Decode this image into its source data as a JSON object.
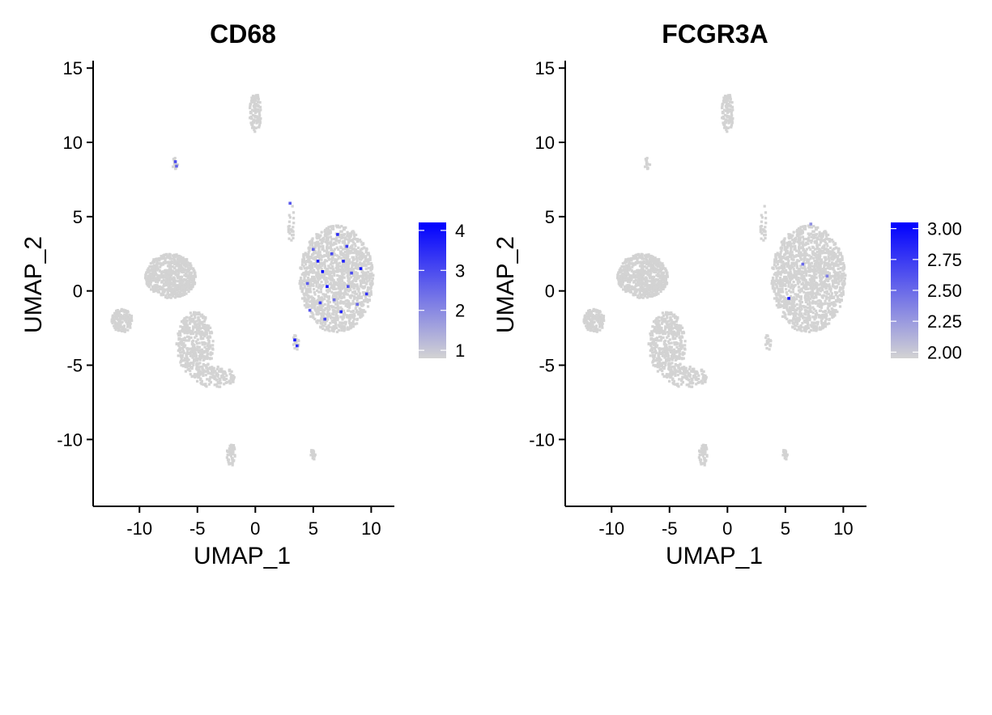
{
  "colors": {
    "low": "#d3d3d3",
    "high": "#0000ff",
    "axis": "#000000"
  },
  "chart_data": [
    {
      "type": "scatter",
      "title": "CD68",
      "xlabel": "UMAP_1",
      "ylabel": "UMAP_2",
      "xlim": [
        -14,
        12
      ],
      "ylim": [
        -14.5,
        15.5
      ],
      "xticks": [
        -10,
        -5,
        0,
        5,
        10
      ],
      "xtick_labels": [
        "-10",
        "-5",
        "0",
        "5",
        "10"
      ],
      "yticks": [
        -10,
        -5,
        0,
        5,
        10,
        15
      ],
      "ytick_labels": [
        "-10",
        "-5",
        "0",
        "5",
        "10",
        "15"
      ],
      "grid": false,
      "legend": {
        "placement": "right",
        "type": "colorbar",
        "range": [
          0.8,
          4.2
        ],
        "ticks": [
          1,
          2,
          3,
          4
        ],
        "tick_labels": [
          "1",
          "2",
          "3",
          "4"
        ],
        "low_color": "#d3d3d3",
        "high_color": "#0000ff"
      },
      "clusters": [
        {
          "cx": 7.0,
          "cy": 0.8,
          "rx": 3.2,
          "ry": 3.6,
          "n": 1500
        },
        {
          "cx": -7.3,
          "cy": 1.0,
          "rx": 2.2,
          "ry": 1.5,
          "n": 650
        },
        {
          "cx": -11.5,
          "cy": -2.0,
          "rx": 0.9,
          "ry": 0.8,
          "n": 140
        },
        {
          "cx": -5.2,
          "cy": -3.6,
          "rx": 1.6,
          "ry": 2.2,
          "n": 450
        },
        {
          "cx": -3.5,
          "cy": -5.8,
          "rx": 1.8,
          "ry": 0.7,
          "n": 130
        },
        {
          "cx": 0.0,
          "cy": 12.0,
          "rx": 0.5,
          "ry": 1.3,
          "n": 110
        },
        {
          "cx": -2.1,
          "cy": -11.0,
          "rx": 0.35,
          "ry": 0.8,
          "n": 45
        },
        {
          "cx": 5.0,
          "cy": -11.0,
          "rx": 0.25,
          "ry": 0.35,
          "n": 20
        },
        {
          "cx": 3.1,
          "cy": 4.5,
          "rx": 0.25,
          "ry": 1.5,
          "n": 25
        },
        {
          "cx": 3.5,
          "cy": -3.5,
          "rx": 0.25,
          "ry": 0.6,
          "n": 18
        },
        {
          "cx": -6.9,
          "cy": 8.6,
          "rx": 0.25,
          "ry": 0.45,
          "n": 14
        }
      ],
      "highlights": [
        {
          "x": 7.1,
          "y": 3.8,
          "v": 3.5
        },
        {
          "x": 5.4,
          "y": 2.0,
          "v": 3.8
        },
        {
          "x": 8.3,
          "y": 1.2,
          "v": 3.0
        },
        {
          "x": 6.2,
          "y": 0.3,
          "v": 4.0
        },
        {
          "x": 5.6,
          "y": -0.8,
          "v": 3.2
        },
        {
          "x": 7.4,
          "y": -1.4,
          "v": 3.6
        },
        {
          "x": 4.7,
          "y": -1.3,
          "v": 2.8
        },
        {
          "x": 9.1,
          "y": 1.5,
          "v": 3.9
        },
        {
          "x": 6.6,
          "y": 2.5,
          "v": 3.0
        },
        {
          "x": 8.8,
          "y": -0.9,
          "v": 2.5
        },
        {
          "x": 3.4,
          "y": -3.3,
          "v": 3.8
        },
        {
          "x": 3.6,
          "y": -3.7,
          "v": 3.5
        },
        {
          "x": -6.9,
          "y": 8.7,
          "v": 3.0
        },
        {
          "x": -6.8,
          "y": 8.4,
          "v": 2.6
        },
        {
          "x": 3.0,
          "y": 5.9,
          "v": 2.8
        },
        {
          "x": 5.0,
          "y": 2.8,
          "v": 2.6
        },
        {
          "x": 7.9,
          "y": 3.0,
          "v": 3.3
        },
        {
          "x": 6.0,
          "y": -1.9,
          "v": 3.1
        },
        {
          "x": 8.0,
          "y": 0.3,
          "v": 2.9
        },
        {
          "x": 5.8,
          "y": 1.3,
          "v": 4.1
        },
        {
          "x": 7.6,
          "y": 2.0,
          "v": 3.7
        },
        {
          "x": 4.5,
          "y": 0.5,
          "v": 2.7
        },
        {
          "x": 9.6,
          "y": -0.2,
          "v": 3.4
        },
        {
          "x": 6.8,
          "y": -0.6,
          "v": 2.4
        }
      ]
    },
    {
      "type": "scatter",
      "title": "FCGR3A",
      "xlabel": "UMAP_1",
      "ylabel": "UMAP_2",
      "xlim": [
        -14,
        12
      ],
      "ylim": [
        -14.5,
        15.5
      ],
      "xticks": [
        -10,
        -5,
        0,
        5,
        10
      ],
      "xtick_labels": [
        "-10",
        "-5",
        "0",
        "5",
        "10"
      ],
      "yticks": [
        -10,
        -5,
        0,
        5,
        10,
        15
      ],
      "ytick_labels": [
        "-10",
        "-5",
        "0",
        "5",
        "10",
        "15"
      ],
      "grid": false,
      "legend": {
        "placement": "right",
        "type": "colorbar",
        "range": [
          1.95,
          3.05
        ],
        "ticks": [
          2.0,
          2.25,
          2.5,
          2.75,
          3.0
        ],
        "tick_labels": [
          "2.00",
          "2.25",
          "2.50",
          "2.75",
          "3.00"
        ],
        "low_color": "#d3d3d3",
        "high_color": "#0000ff"
      },
      "clusters": [
        {
          "cx": 7.0,
          "cy": 0.8,
          "rx": 3.2,
          "ry": 3.6,
          "n": 1500
        },
        {
          "cx": -7.3,
          "cy": 1.0,
          "rx": 2.2,
          "ry": 1.5,
          "n": 650
        },
        {
          "cx": -11.5,
          "cy": -2.0,
          "rx": 0.9,
          "ry": 0.8,
          "n": 140
        },
        {
          "cx": -5.2,
          "cy": -3.6,
          "rx": 1.6,
          "ry": 2.2,
          "n": 450
        },
        {
          "cx": -3.5,
          "cy": -5.8,
          "rx": 1.8,
          "ry": 0.7,
          "n": 130
        },
        {
          "cx": 0.0,
          "cy": 12.0,
          "rx": 0.5,
          "ry": 1.3,
          "n": 110
        },
        {
          "cx": -2.1,
          "cy": -11.0,
          "rx": 0.35,
          "ry": 0.8,
          "n": 45
        },
        {
          "cx": 5.0,
          "cy": -11.0,
          "rx": 0.25,
          "ry": 0.35,
          "n": 20
        },
        {
          "cx": 3.1,
          "cy": 4.5,
          "rx": 0.25,
          "ry": 1.5,
          "n": 25
        },
        {
          "cx": 3.5,
          "cy": -3.5,
          "rx": 0.25,
          "ry": 0.6,
          "n": 18
        },
        {
          "cx": -6.9,
          "cy": 8.6,
          "rx": 0.25,
          "ry": 0.45,
          "n": 14
        }
      ],
      "highlights": [
        {
          "x": 5.3,
          "y": -0.5,
          "v": 2.9
        },
        {
          "x": 6.5,
          "y": 1.8,
          "v": 2.5
        },
        {
          "x": 8.6,
          "y": 1.0,
          "v": 2.4
        },
        {
          "x": 7.2,
          "y": 4.5,
          "v": 2.3
        }
      ]
    }
  ]
}
